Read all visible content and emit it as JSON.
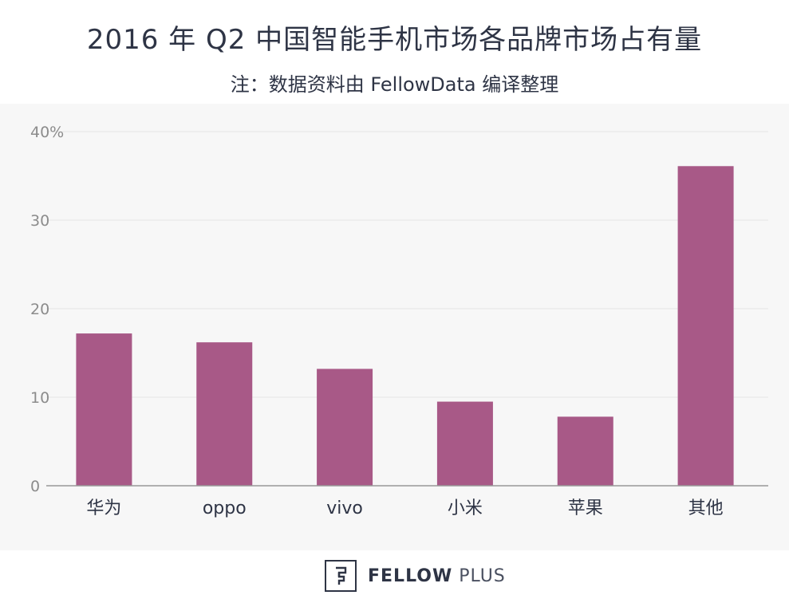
{
  "title": "2016 年 Q2 中国智能手机市场各品牌市场占有量",
  "subtitle": "注：数据资料由 FellowData 编译整理",
  "chart_data": {
    "type": "bar",
    "categories": [
      "华为",
      "oppo",
      "vivo",
      "小米",
      "苹果",
      "其他"
    ],
    "values": [
      17.2,
      16.2,
      13.2,
      9.5,
      7.8,
      36.1
    ],
    "ylim": [
      0,
      40
    ],
    "yticks": [
      0,
      10,
      20,
      30,
      40
    ],
    "ytick_labels": [
      "0",
      "10",
      "20",
      "30",
      "40%"
    ],
    "bar_color": "#a85987",
    "grid": true
  },
  "brand": {
    "name_strong": "FELLOW",
    "name_light": "PLUS"
  },
  "colors": {
    "background": "#f7f7f7",
    "text": "#2e3445",
    "bar": "#a85987",
    "gridline": "#e6e6e6",
    "axis": "#999999"
  }
}
